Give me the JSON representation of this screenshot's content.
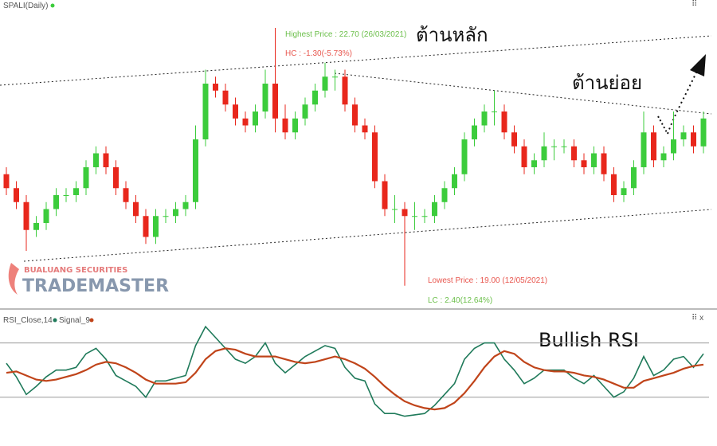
{
  "chart_data": [
    {
      "type": "candlestick",
      "title": "SPALI(Daily)",
      "open": [
        20.6,
        20.4,
        20.2,
        19.8,
        19.9,
        20.1,
        20.3,
        20.3,
        20.4,
        20.7,
        20.9,
        20.7,
        20.4,
        20.2,
        20.0,
        19.7,
        20.0,
        20.0,
        20.1,
        20.2,
        21.1,
        21.9,
        21.8,
        21.6,
        21.4,
        21.3,
        21.5,
        21.9,
        21.4,
        21.2,
        21.4,
        21.6,
        21.8,
        22.0,
        22.0,
        21.6,
        21.3,
        21.2,
        20.5,
        20.1,
        20.1,
        20.0,
        20.0,
        20.0,
        20.2,
        20.4,
        20.6,
        21.1,
        21.3,
        21.5,
        21.5,
        21.2,
        21.0,
        20.7,
        20.8,
        21.0,
        21.0,
        21.0,
        20.8,
        20.7,
        20.9,
        20.6,
        20.3,
        20.4,
        20.7,
        21.2,
        20.8,
        20.9,
        21.1,
        21.2,
        21.0
      ],
      "high": [
        20.7,
        20.5,
        20.3,
        20.0,
        20.2,
        20.4,
        20.4,
        20.5,
        20.8,
        21.0,
        21.0,
        20.8,
        20.5,
        20.3,
        20.1,
        20.1,
        20.1,
        20.2,
        20.3,
        21.3,
        22.1,
        22.0,
        21.9,
        21.7,
        21.5,
        21.6,
        22.1,
        22.7,
        21.6,
        21.5,
        21.7,
        21.9,
        22.2,
        22.1,
        22.1,
        21.7,
        21.4,
        21.3,
        20.6,
        20.3,
        20.2,
        20.2,
        20.1,
        20.3,
        20.5,
        20.7,
        21.2,
        21.4,
        21.6,
        21.8,
        21.6,
        21.3,
        21.1,
        20.9,
        21.2,
        21.1,
        21.1,
        21.1,
        20.9,
        21.0,
        21.0,
        20.7,
        20.5,
        20.8,
        21.5,
        21.3,
        21.0,
        21.5,
        21.3,
        21.3,
        21.5
      ],
      "low": [
        20.3,
        20.1,
        19.5,
        19.7,
        19.8,
        20.0,
        20.2,
        20.2,
        20.3,
        20.6,
        20.6,
        20.3,
        20.1,
        19.9,
        19.6,
        19.6,
        19.9,
        19.9,
        20.0,
        20.1,
        21.0,
        21.7,
        21.5,
        21.3,
        21.2,
        21.2,
        21.4,
        21.2,
        21.1,
        21.1,
        21.3,
        21.5,
        21.7,
        21.8,
        21.5,
        21.2,
        21.1,
        20.4,
        20.0,
        19.9,
        19.0,
        19.8,
        19.9,
        19.9,
        20.1,
        20.3,
        20.5,
        21.0,
        21.2,
        21.3,
        21.1,
        20.9,
        20.6,
        20.6,
        20.7,
        20.8,
        20.9,
        20.7,
        20.6,
        20.6,
        20.5,
        20.2,
        20.2,
        20.3,
        20.6,
        20.7,
        20.7,
        20.8,
        21.0,
        20.9,
        20.9
      ],
      "close": [
        20.4,
        20.2,
        19.8,
        19.9,
        20.1,
        20.3,
        20.3,
        20.4,
        20.7,
        20.9,
        20.7,
        20.4,
        20.2,
        20.0,
        19.7,
        20.0,
        20.0,
        20.1,
        20.2,
        21.1,
        21.9,
        21.8,
        21.6,
        21.4,
        21.3,
        21.5,
        21.9,
        21.4,
        21.2,
        21.4,
        21.6,
        21.8,
        22.0,
        22.0,
        21.6,
        21.3,
        21.2,
        20.5,
        20.1,
        20.1,
        20.0,
        20.0,
        20.0,
        20.2,
        20.4,
        20.6,
        21.1,
        21.3,
        21.5,
        21.5,
        21.2,
        21.0,
        20.7,
        20.8,
        21.0,
        21.0,
        21.0,
        20.8,
        20.7,
        20.9,
        20.6,
        20.3,
        20.4,
        20.7,
        21.2,
        20.8,
        20.9,
        21.1,
        21.2,
        21.0,
        21.4
      ],
      "up_color": "#3ccc3c",
      "down_color": "#e8271c",
      "ylim": [
        18.7,
        23.1
      ],
      "annotations": [
        "Highest Price : 22.70 (26/03/2021)",
        "HC : -1.30(-5.73%)",
        "ต้านหลัก",
        "ต้านย่อย",
        "Lowest Price : 19.00 (12/05/2021)",
        "LC : 2.40(12.64%)"
      ],
      "watermark": [
        "BUALUANG SECURITIES",
        "TRADEMASTER"
      ]
    },
    {
      "type": "line",
      "series": [
        {
          "name": "RSI_Close,14",
          "color": "#1f7a5a",
          "values": [
            55,
            45,
            32,
            38,
            45,
            50,
            50,
            52,
            62,
            66,
            58,
            46,
            42,
            38,
            30,
            42,
            42,
            44,
            46,
            68,
            82,
            74,
            66,
            58,
            55,
            60,
            70,
            55,
            48,
            54,
            60,
            64,
            68,
            66,
            52,
            44,
            42,
            25,
            18,
            18,
            16,
            17,
            18,
            24,
            32,
            40,
            58,
            66,
            70,
            70,
            58,
            50,
            40,
            44,
            50,
            50,
            50,
            44,
            40,
            46,
            38,
            30,
            34,
            44,
            60,
            46,
            50,
            58,
            60,
            52,
            62
          ]
        },
        {
          "name": "Signal_9",
          "color": "#c0441a",
          "values": [
            48,
            49,
            46,
            43,
            42,
            43,
            45,
            47,
            50,
            54,
            56,
            55,
            52,
            48,
            43,
            40,
            40,
            40,
            41,
            48,
            58,
            64,
            66,
            65,
            62,
            60,
            60,
            60,
            58,
            56,
            55,
            56,
            58,
            60,
            58,
            55,
            51,
            45,
            38,
            32,
            27,
            24,
            22,
            21,
            22,
            26,
            33,
            42,
            52,
            60,
            64,
            62,
            56,
            52,
            50,
            49,
            49,
            48,
            46,
            45,
            43,
            40,
            37,
            37,
            42,
            44,
            46,
            48,
            51,
            53,
            54
          ]
        }
      ],
      "ylim": [
        -3,
        85
      ],
      "levels": [
        70,
        30
      ],
      "annotation": "Bullish RSI"
    }
  ]
}
